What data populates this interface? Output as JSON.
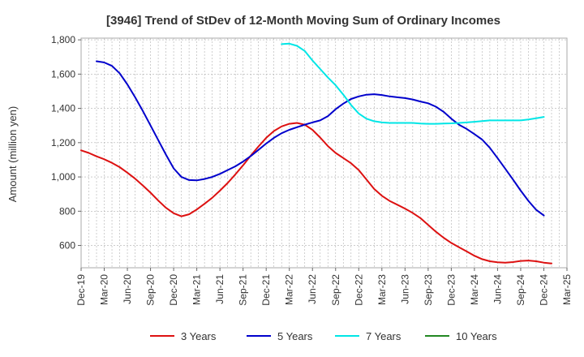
{
  "chart_data": {
    "type": "line",
    "title": "[3946]  Trend of StDev of 12-Month Moving Sum of Ordinary Incomes",
    "xlabel": "",
    "ylabel": "Amount (million yen)",
    "ylim": [
      470,
      1810
    ],
    "yticks": [
      600,
      800,
      1000,
      1200,
      1400,
      1600,
      1800
    ],
    "ytick_labels": [
      "600",
      "800",
      "1,000",
      "1,200",
      "1,400",
      "1,600",
      "1,800"
    ],
    "x_start": "Dec-19",
    "x_end": "Mar-25",
    "x_tick_labels": [
      "Dec-19",
      "Mar-20",
      "Jun-20",
      "Sep-20",
      "Dec-20",
      "Mar-21",
      "Jun-21",
      "Sep-21",
      "Dec-21",
      "Mar-22",
      "Jun-22",
      "Sep-22",
      "Dec-22",
      "Mar-23",
      "Jun-23",
      "Sep-23",
      "Dec-23",
      "Mar-24",
      "Jun-24",
      "Sep-24",
      "Dec-24",
      "Mar-25"
    ],
    "grid": true,
    "legend_position": "bottom",
    "series": [
      {
        "name": "3 Years",
        "color": "#dd1111",
        "points": [
          [
            "Dec-19",
            1155
          ],
          [
            "Jan-20",
            1140
          ],
          [
            "Feb-20",
            1120
          ],
          [
            "Mar-20",
            1103
          ],
          [
            "Apr-20",
            1082
          ],
          [
            "May-20",
            1057
          ],
          [
            "Jun-20",
            1025
          ],
          [
            "Jul-20",
            990
          ],
          [
            "Aug-20",
            950
          ],
          [
            "Sep-20",
            908
          ],
          [
            "Oct-20",
            862
          ],
          [
            "Nov-20",
            820
          ],
          [
            "Dec-20",
            788
          ],
          [
            "Jan-21",
            770
          ],
          [
            "Feb-21",
            782
          ],
          [
            "Mar-21",
            810
          ],
          [
            "Apr-21",
            843
          ],
          [
            "May-21",
            878
          ],
          [
            "Jun-21",
            920
          ],
          [
            "Jul-21",
            965
          ],
          [
            "Aug-21",
            1015
          ],
          [
            "Sep-21",
            1068
          ],
          [
            "Oct-21",
            1125
          ],
          [
            "Nov-21",
            1178
          ],
          [
            "Dec-21",
            1228
          ],
          [
            "Jan-22",
            1268
          ],
          [
            "Feb-22",
            1295
          ],
          [
            "Mar-22",
            1310
          ],
          [
            "Apr-22",
            1315
          ],
          [
            "May-22",
            1305
          ],
          [
            "Jun-22",
            1275
          ],
          [
            "Jul-22",
            1230
          ],
          [
            "Aug-22",
            1180
          ],
          [
            "Sep-22",
            1140
          ],
          [
            "Oct-22",
            1110
          ],
          [
            "Nov-22",
            1080
          ],
          [
            "Dec-22",
            1040
          ],
          [
            "Jan-23",
            985
          ],
          [
            "Feb-23",
            930
          ],
          [
            "Mar-23",
            890
          ],
          [
            "Apr-23",
            860
          ],
          [
            "May-23",
            838
          ],
          [
            "Jun-23",
            815
          ],
          [
            "Jul-23",
            790
          ],
          [
            "Aug-23",
            760
          ],
          [
            "Sep-23",
            720
          ],
          [
            "Oct-23",
            680
          ],
          [
            "Nov-23",
            645
          ],
          [
            "Dec-23",
            615
          ],
          [
            "Jan-24",
            590
          ],
          [
            "Feb-24",
            565
          ],
          [
            "Mar-24",
            540
          ],
          [
            "Apr-24",
            520
          ],
          [
            "May-24",
            508
          ],
          [
            "Jun-24",
            502
          ],
          [
            "Jul-24",
            500
          ],
          [
            "Aug-24",
            503
          ],
          [
            "Sep-24",
            510
          ],
          [
            "Oct-24",
            512
          ],
          [
            "Nov-24",
            508
          ],
          [
            "Dec-24",
            500
          ],
          [
            "Jan-25",
            495
          ]
        ]
      },
      {
        "name": "5 Years",
        "color": "#0000cc",
        "points": [
          [
            "Feb-20",
            1675
          ],
          [
            "Mar-20",
            1668
          ],
          [
            "Apr-20",
            1648
          ],
          [
            "May-20",
            1605
          ],
          [
            "Jun-20",
            1540
          ],
          [
            "Jul-20",
            1465
          ],
          [
            "Aug-20",
            1385
          ],
          [
            "Sep-20",
            1300
          ],
          [
            "Oct-20",
            1215
          ],
          [
            "Nov-20",
            1130
          ],
          [
            "Dec-20",
            1050
          ],
          [
            "Jan-21",
            1000
          ],
          [
            "Feb-21",
            982
          ],
          [
            "Mar-21",
            980
          ],
          [
            "Apr-21",
            988
          ],
          [
            "May-21",
            1000
          ],
          [
            "Jun-21",
            1018
          ],
          [
            "Jul-21",
            1040
          ],
          [
            "Aug-21",
            1062
          ],
          [
            "Sep-21",
            1090
          ],
          [
            "Oct-21",
            1122
          ],
          [
            "Nov-21",
            1158
          ],
          [
            "Dec-21",
            1195
          ],
          [
            "Jan-22",
            1228
          ],
          [
            "Feb-22",
            1255
          ],
          [
            "Mar-22",
            1275
          ],
          [
            "Apr-22",
            1290
          ],
          [
            "May-22",
            1305
          ],
          [
            "Jun-22",
            1318
          ],
          [
            "Jul-22",
            1330
          ],
          [
            "Aug-22",
            1355
          ],
          [
            "Sep-22",
            1395
          ],
          [
            "Oct-22",
            1428
          ],
          [
            "Nov-22",
            1455
          ],
          [
            "Dec-22",
            1470
          ],
          [
            "Jan-23",
            1480
          ],
          [
            "Feb-23",
            1483
          ],
          [
            "Mar-23",
            1478
          ],
          [
            "Apr-23",
            1470
          ],
          [
            "May-23",
            1465
          ],
          [
            "Jun-23",
            1460
          ],
          [
            "Jul-23",
            1452
          ],
          [
            "Aug-23",
            1440
          ],
          [
            "Sep-23",
            1430
          ],
          [
            "Oct-23",
            1410
          ],
          [
            "Nov-23",
            1380
          ],
          [
            "Dec-23",
            1340
          ],
          [
            "Jan-24",
            1305
          ],
          [
            "Feb-24",
            1280
          ],
          [
            "Mar-24",
            1250
          ],
          [
            "Apr-24",
            1218
          ],
          [
            "May-24",
            1170
          ],
          [
            "Jun-24",
            1110
          ],
          [
            "Jul-24",
            1048
          ],
          [
            "Aug-24",
            985
          ],
          [
            "Sep-24",
            920
          ],
          [
            "Oct-24",
            860
          ],
          [
            "Nov-24",
            808
          ],
          [
            "Dec-24",
            775
          ]
        ]
      },
      {
        "name": "7 Years",
        "color": "#00e6e6",
        "points": [
          [
            "Feb-22",
            1775
          ],
          [
            "Mar-22",
            1778
          ],
          [
            "Apr-22",
            1765
          ],
          [
            "May-22",
            1735
          ],
          [
            "Jun-22",
            1680
          ],
          [
            "Jul-22",
            1630
          ],
          [
            "Aug-22",
            1580
          ],
          [
            "Sep-22",
            1535
          ],
          [
            "Oct-22",
            1480
          ],
          [
            "Nov-22",
            1420
          ],
          [
            "Dec-22",
            1370
          ],
          [
            "Jan-23",
            1340
          ],
          [
            "Feb-23",
            1325
          ],
          [
            "Mar-23",
            1318
          ],
          [
            "Apr-23",
            1315
          ],
          [
            "May-23",
            1315
          ],
          [
            "Jun-23",
            1315
          ],
          [
            "Jul-23",
            1315
          ],
          [
            "Aug-23",
            1312
          ],
          [
            "Sep-23",
            1310
          ],
          [
            "Oct-23",
            1310
          ],
          [
            "Nov-23",
            1312
          ],
          [
            "Dec-23",
            1313
          ],
          [
            "Jan-24",
            1315
          ],
          [
            "Feb-24",
            1318
          ],
          [
            "Mar-24",
            1322
          ],
          [
            "Apr-24",
            1326
          ],
          [
            "May-24",
            1330
          ],
          [
            "Jun-24",
            1330
          ],
          [
            "Jul-24",
            1330
          ],
          [
            "Aug-24",
            1330
          ],
          [
            "Sep-24",
            1330
          ],
          [
            "Oct-24",
            1335
          ],
          [
            "Nov-24",
            1342
          ],
          [
            "Dec-24",
            1350
          ]
        ]
      },
      {
        "name": "10 Years",
        "color": "#228822",
        "points": []
      }
    ]
  }
}
